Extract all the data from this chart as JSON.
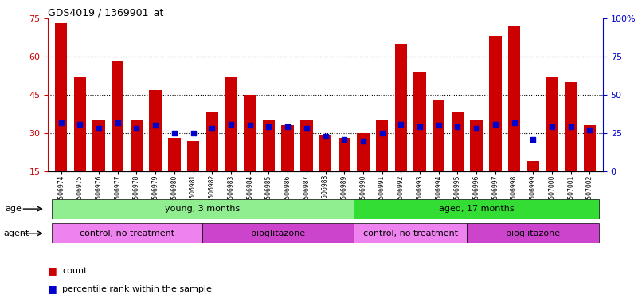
{
  "title": "GDS4019 / 1369901_at",
  "samples": [
    "GSM506974",
    "GSM506975",
    "GSM506976",
    "GSM506977",
    "GSM506978",
    "GSM506979",
    "GSM506980",
    "GSM506981",
    "GSM506982",
    "GSM506983",
    "GSM506984",
    "GSM506985",
    "GSM506986",
    "GSM506987",
    "GSM506988",
    "GSM506989",
    "GSM506990",
    "GSM506991",
    "GSM506992",
    "GSM506993",
    "GSM506994",
    "GSM506995",
    "GSM506996",
    "GSM506997",
    "GSM506998",
    "GSM506999",
    "GSM507000",
    "GSM507001",
    "GSM507002"
  ],
  "counts": [
    73,
    52,
    35,
    58,
    35,
    47,
    28,
    27,
    38,
    52,
    45,
    35,
    33,
    35,
    29,
    28,
    30,
    35,
    65,
    54,
    43,
    38,
    35,
    68,
    72,
    19,
    52,
    50,
    33
  ],
  "percentile_ranks": [
    32,
    31,
    28,
    32,
    28,
    30,
    25,
    25,
    28,
    31,
    30,
    29,
    29,
    28,
    23,
    21,
    20,
    25,
    31,
    29,
    30,
    29,
    28,
    31,
    32,
    21,
    29,
    29,
    27
  ],
  "ylim_left": [
    15,
    75
  ],
  "ylim_right": [
    0,
    100
  ],
  "yticks_left": [
    15,
    30,
    45,
    60,
    75
  ],
  "yticks_right": [
    0,
    25,
    50,
    75,
    100
  ],
  "bar_color": "#cc0000",
  "percentile_color": "#0000cc",
  "bg_color": "#ffffff",
  "age_groups": [
    {
      "label": "young, 3 months",
      "start": 0,
      "end": 16,
      "color": "#90ee90"
    },
    {
      "label": "aged, 17 months",
      "start": 16,
      "end": 29,
      "color": "#33dd33"
    }
  ],
  "agent_groups": [
    {
      "label": "control, no treatment",
      "start": 0,
      "end": 8,
      "color": "#ee82ee"
    },
    {
      "label": "pioglitazone",
      "start": 8,
      "end": 16,
      "color": "#cc44cc"
    },
    {
      "label": "control, no treatment",
      "start": 16,
      "end": 22,
      "color": "#ee82ee"
    },
    {
      "label": "pioglitazone",
      "start": 22,
      "end": 29,
      "color": "#cc44cc"
    }
  ],
  "title_color": "#000000",
  "axis_left_color": "#cc0000",
  "axis_right_color": "#0000cc",
  "legend_count_color": "#cc0000",
  "legend_pct_color": "#0000cc"
}
